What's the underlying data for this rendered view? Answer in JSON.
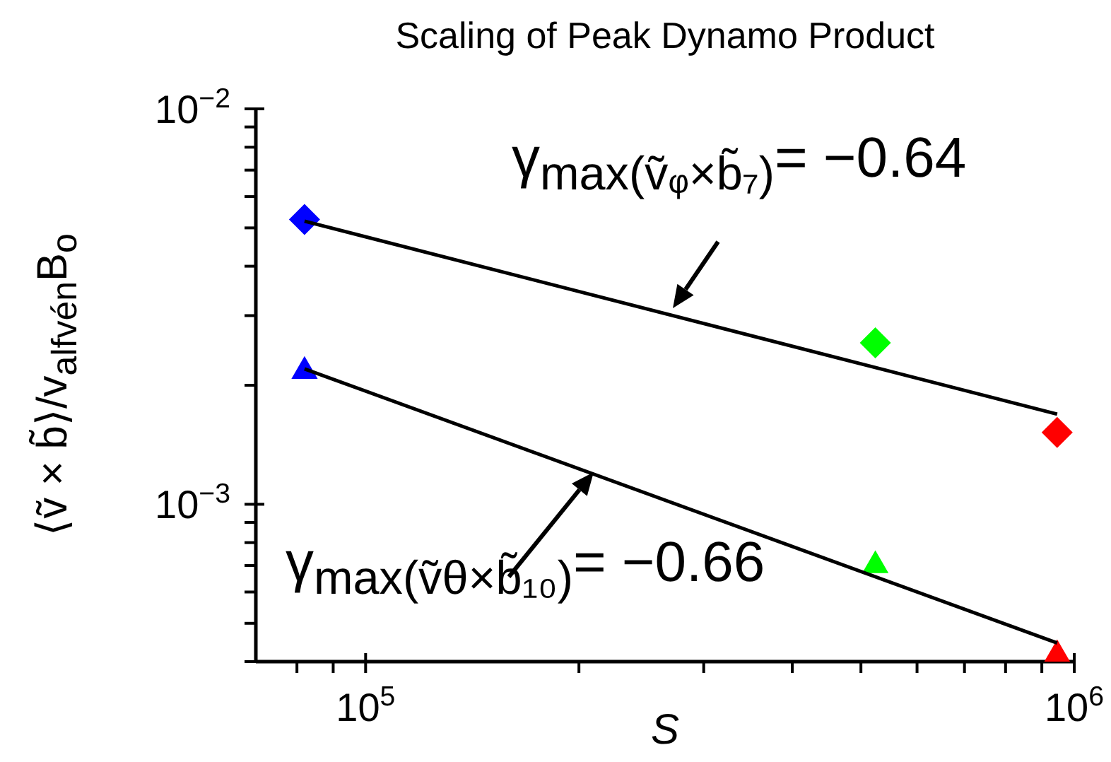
{
  "chart_data": {
    "type": "scatter",
    "title": "Scaling of Peak Dynamo Product",
    "xlabel": "S",
    "ylabel": "⟨ṽ × b̃⟩/v$_{alfvén}$B$_{o}$",
    "log": "xy",
    "xlim": [
      70000,
      1000000
    ],
    "ylim": [
      0.0004,
      0.01
    ],
    "xticks": [
      {
        "value": 80000,
        "label": null
      },
      {
        "value": 90000,
        "label": null
      },
      {
        "value": 100000,
        "label": "10$^{5}$"
      },
      {
        "value": 200000,
        "label": null
      },
      {
        "value": 300000,
        "label": null
      },
      {
        "value": 400000,
        "label": null
      },
      {
        "value": 500000,
        "label": null
      },
      {
        "value": 600000,
        "label": null
      },
      {
        "value": 700000,
        "label": null
      },
      {
        "value": 800000,
        "label": null
      },
      {
        "value": 900000,
        "label": null
      },
      {
        "value": 1000000,
        "label": "10$^{6}$"
      }
    ],
    "yticks": [
      {
        "value": 0.0004,
        "label": null
      },
      {
        "value": 0.0005,
        "label": null
      },
      {
        "value": 0.0006,
        "label": null
      },
      {
        "value": 0.0007,
        "label": null
      },
      {
        "value": 0.0008,
        "label": null
      },
      {
        "value": 0.0009,
        "label": null
      },
      {
        "value": 0.001,
        "label": "10$^{−3}$"
      },
      {
        "value": 0.002,
        "label": null
      },
      {
        "value": 0.003,
        "label": null
      },
      {
        "value": 0.004,
        "label": null
      },
      {
        "value": 0.005,
        "label": null
      },
      {
        "value": 0.006,
        "label": null
      },
      {
        "value": 0.007,
        "label": null
      },
      {
        "value": 0.008,
        "label": null
      },
      {
        "value": 0.009,
        "label": null
      },
      {
        "value": 0.01,
        "label": "10$^{−2}$"
      }
    ],
    "annotations": [
      "γ$_{max(ṽᵩ×b̃₇)}$= −0.64",
      "γ$_{max(ṽθ×b̃₁₀)}$= −0.66"
    ],
    "series": [
      {
        "marker": "diamond",
        "x": [
          82000,
          524000,
          946000
        ],
        "values": [
          0.00525,
          0.00256,
          0.00152
        ],
        "colors": [
          "#0000ff",
          "#00ff00",
          "#ff0000"
        ]
      },
      {
        "marker": "triangle",
        "x": [
          82000,
          524000,
          946000
        ],
        "values": [
          0.00217,
          0.0007,
          0.000417
        ],
        "colors": [
          "#0000ff",
          "#00ff00",
          "#ff0000"
        ]
      },
      {
        "type": "line",
        "marker": "none",
        "color": "#000000",
        "x": [
          82000,
          946000
        ],
        "values": [
          0.0052,
          0.00169
        ]
      },
      {
        "type": "line",
        "marker": "none",
        "color": "#000000",
        "x": [
          82000,
          946000
        ],
        "values": [
          0.0022,
          0.000446
        ]
      }
    ]
  }
}
